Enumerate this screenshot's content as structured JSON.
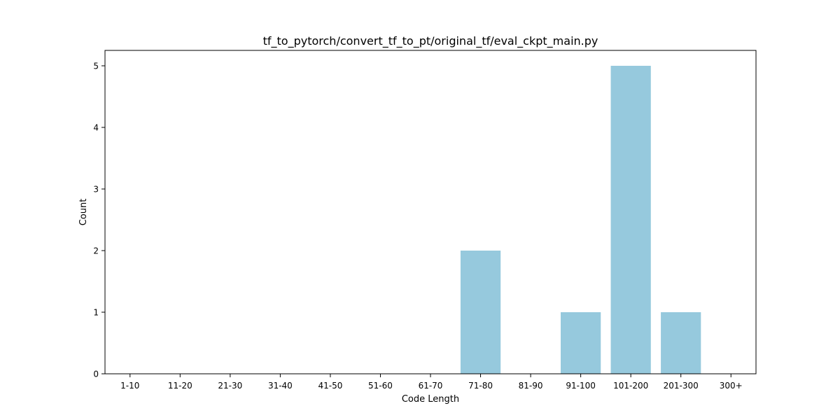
{
  "chart_data": {
    "type": "bar",
    "title": "tf_to_pytorch/convert_tf_to_pt/original_tf/eval_ckpt_main.py",
    "xlabel": "Code Length",
    "ylabel": "Count",
    "categories": [
      "1-10",
      "11-20",
      "21-30",
      "31-40",
      "41-50",
      "51-60",
      "61-70",
      "71-80",
      "81-90",
      "91-100",
      "101-200",
      "201-300",
      "300+"
    ],
    "values": [
      0,
      0,
      0,
      0,
      0,
      0,
      0,
      2,
      0,
      1,
      5,
      1,
      0
    ],
    "ylim": [
      0,
      5.25
    ],
    "yticks": [
      0,
      1,
      2,
      3,
      4,
      5
    ],
    "grid": false,
    "bar_color": "#96c9dd"
  }
}
